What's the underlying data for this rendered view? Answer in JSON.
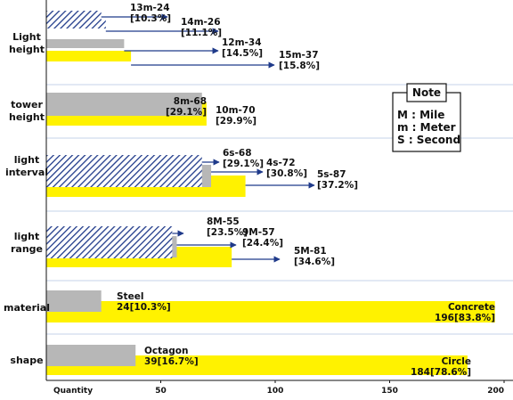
{
  "chart_data": {
    "type": "bar",
    "orientation": "horizontal",
    "x_axis": {
      "label": "Quantity",
      "ticks": [
        50,
        100,
        150,
        200
      ],
      "range": [
        0,
        200
      ]
    },
    "colors": {
      "hatched": "#1f3a8a",
      "gray": "#b7b7b7",
      "yellow": "#fff200",
      "arrow": "#1f3a8a",
      "separator": "#c6d3e8"
    },
    "groups": [
      {
        "label_lines": [
          "Light",
          "height"
        ],
        "bars": [
          {
            "style": "hatched",
            "value": 24,
            "label_lines": [
              "13m-24",
              "[10.3%]"
            ],
            "arrow": true
          },
          {
            "style": "hatched",
            "value": 26,
            "label_lines": [
              "14m-26",
              "[11.1%]"
            ],
            "arrow": true
          },
          {
            "style": "gray",
            "value": 34,
            "label_lines": [
              "12m-34",
              "[14.5%]"
            ],
            "arrow": true
          },
          {
            "style": "yellow",
            "value": 37,
            "label_lines": [
              "15m-37",
              "[15.8%]"
            ],
            "arrow": true
          }
        ]
      },
      {
        "label_lines": [
          "tower",
          "height"
        ],
        "bars": [
          {
            "style": "gray",
            "value": 68,
            "label_lines": [
              "8m-68",
              "[29.1%]"
            ],
            "arrow": false
          },
          {
            "style": "yellow",
            "value": 70,
            "label_lines": [
              "10m-70",
              "[29.9%]"
            ],
            "arrow": false
          }
        ]
      },
      {
        "label_lines": [
          "light",
          "interval"
        ],
        "bars": [
          {
            "style": "hatched",
            "value": 68,
            "label_lines": [
              "6s-68",
              "[29.1%]"
            ],
            "arrow": true
          },
          {
            "style": "gray",
            "value": 72,
            "label_lines": [
              "4s-72",
              "[30.8%]"
            ],
            "arrow": true
          },
          {
            "style": "yellow",
            "value": 87,
            "label_lines": [
              "5s-87",
              "[37.2%]"
            ],
            "arrow": true
          }
        ]
      },
      {
        "label_lines": [
          "light",
          "range"
        ],
        "bars": [
          {
            "style": "hatched",
            "value": 55,
            "label_lines": [
              "8M-55",
              "[23.5%]"
            ],
            "arrow": true
          },
          {
            "style": "gray",
            "value": 57,
            "label_lines": [
              "9M-57",
              "[24.4%]"
            ],
            "arrow": true
          },
          {
            "style": "yellow",
            "value": 81,
            "label_lines": [
              "5M-81",
              "[34.6%]"
            ],
            "arrow": true
          }
        ]
      },
      {
        "label_lines": [
          "material"
        ],
        "bars": [
          {
            "style": "gray",
            "value": 24,
            "label_lines": [
              "Steel",
              "24[10.3%]"
            ],
            "arrow": false
          },
          {
            "style": "yellow",
            "value": 196,
            "label_lines": [
              "Concrete",
              "196[83.8%]"
            ],
            "arrow": false
          }
        ]
      },
      {
        "label_lines": [
          "shape"
        ],
        "bars": [
          {
            "style": "gray",
            "value": 39,
            "label_lines": [
              "Octagon",
              "39[16.7%]"
            ],
            "arrow": false
          },
          {
            "style": "yellow",
            "value": 184,
            "label_lines": [
              "Circle",
              "184[78.6%]"
            ],
            "arrow": false
          }
        ]
      }
    ],
    "note": {
      "title": "Note",
      "lines": [
        "M : Mile",
        "m : Meter",
        "S : Second"
      ]
    }
  }
}
